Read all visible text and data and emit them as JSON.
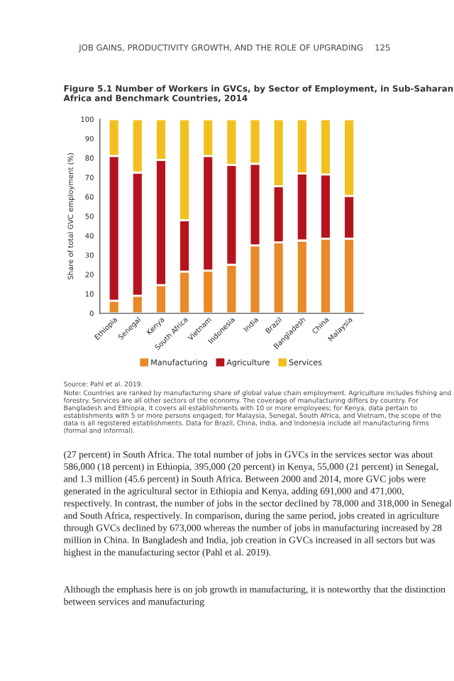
{
  "chart_data": {
    "type": "bar",
    "stacked": true,
    "title": "Figure 5.1 Number of Workers in GVCs, by Sector of Employment, in Sub-Saharan Africa and Benchmark Countries, 2014",
    "ylabel": "Share of total GVC employment (%)",
    "categories": [
      "Ethiopia",
      "Senegal",
      "Kenya",
      "South Africa",
      "Vietnam",
      "Indonesia",
      "India",
      "Brazil",
      "Bangladesh",
      "China",
      "Malaysia"
    ],
    "series": [
      {
        "name": "Manufacturing",
        "color": "#e8892a",
        "values": [
          6.5,
          9,
          14.5,
          21.5,
          22,
          25,
          35,
          36.5,
          37.5,
          38.5,
          38.5
        ]
      },
      {
        "name": "Agriculture",
        "color": "#b5141c",
        "values": [
          74.5,
          63.5,
          64.5,
          26.5,
          59,
          51.5,
          42,
          29,
          34.5,
          33,
          22
        ]
      },
      {
        "name": "Services",
        "color": "#f2c01e",
        "values": [
          19,
          27.5,
          21,
          52,
          19,
          23.5,
          23,
          34.5,
          28,
          28.5,
          39.5
        ]
      }
    ],
    "ylim": [
      0,
      100
    ],
    "yticks": [
      0,
      10,
      20,
      30,
      40,
      50,
      60,
      70,
      80,
      90,
      100
    ],
    "grid": false,
    "legend": "bottom",
    "annotations": [
      "JOB GAINS, PRODUCTIVITY GROWTH, AND THE ROLE OF UPGRADING",
      "125",
      "Source: Pahl et al. 2019.",
      "Note: Countries are ranked by manufacturing share of global value chain employment. Agriculture includes fishing and forestry. Services are all other sectors of the economy. The coverage of manufacturing differs by country. For Bangladesh and Ethiopia, it covers all establishments with 10 or more employees; for Kenya, data pertain to establishments with 5 or more persons engaged; for Malaysia, Senegal, South Africa, and Vietnam, the scope of the data is all registered establishments. Data for Brazil, China, India, and Indonesia include all manufacturing firms (formal and informal).",
      "(27 percent) in South Africa. The total number of jobs in GVCs in the services sector was about 586,000 (18 percent) in Ethiopia, 395,000 (20 percent) in Kenya, 55,000 (21 percent) in Senegal, and 1.3 million (45.6 percent) in South Africa. Between 2000 and 2014, more GVC jobs were generated in the agricultural sector in Ethiopia and Kenya, adding 691,000 and 471,000, respectively. In contrast, the number of jobs in the sector declined by 78,000 and 318,000 in Senegal and South Africa, respectively. In comparison, during the same period, jobs created in agriculture through GVCs declined by 673,000 whereas the number of jobs in manufacturing increased by 28 million in China. In Bangladesh and India, job creation in GVCs increased in all sectors but was highest in the manufacturing sector (Pahl et al. 2019).",
      "Although the emphasis here is on job growth in manufacturing, it is noteworthy that the distinction between services and manufacturing"
    ]
  }
}
